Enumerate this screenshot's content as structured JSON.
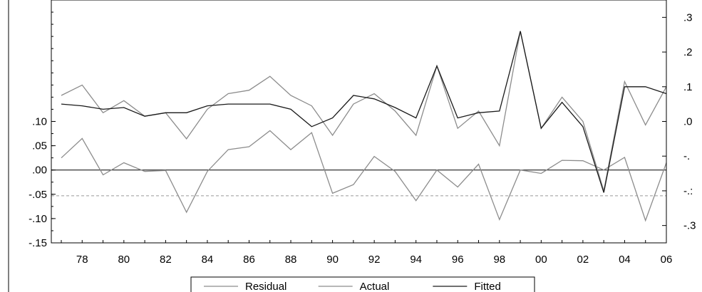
{
  "chart_data": {
    "type": "line",
    "title": "",
    "xlabel": "",
    "x": [
      1977,
      1978,
      1979,
      1980,
      1981,
      1982,
      1983,
      1984,
      1985,
      1986,
      1987,
      1988,
      1989,
      1990,
      1991,
      1992,
      1993,
      1994,
      1995,
      1996,
      1997,
      1998,
      1999,
      2000,
      2001,
      2002,
      2003,
      2004,
      2005,
      2006
    ],
    "x_tick_labels": [
      "78",
      "80",
      "82",
      "84",
      "86",
      "88",
      "90",
      "92",
      "94",
      "96",
      "98",
      "00",
      "02",
      "04",
      "06"
    ],
    "left_axis": {
      "ylim": [
        -0.15,
        0.35
      ],
      "tick_labels": [
        ".10",
        ".05",
        ".00",
        "-.05",
        "-.10",
        "-.15"
      ],
      "tick_values": [
        0.1,
        0.05,
        0.0,
        -0.05,
        -0.1,
        -0.15
      ],
      "reference_lines": [
        {
          "value": 0.0,
          "style": "solid",
          "color": "#000000"
        },
        {
          "value": -0.053,
          "style": "dashed",
          "color": "#999999"
        }
      ]
    },
    "right_axis": {
      "ylim": [
        -0.35,
        0.35
      ],
      "tick_labels": [
        ".3",
        ".2",
        ".1",
        ".0",
        "-.",
        "-.:",
        "-.3"
      ],
      "tick_values": [
        0.3,
        0.2,
        0.1,
        0.0,
        -0.1,
        -0.2,
        -0.3
      ]
    },
    "series": [
      {
        "name": "Residual",
        "axis": "left",
        "color": "#8c8c8c",
        "values": [
          0.025,
          0.065,
          -0.01,
          0.015,
          -0.003,
          -0.001,
          -0.087,
          -0.003,
          0.042,
          0.048,
          0.081,
          0.042,
          0.077,
          -0.048,
          -0.03,
          0.028,
          -0.003,
          -0.063,
          0.0,
          -0.035,
          0.012,
          -0.102,
          0.0,
          -0.007,
          0.02,
          0.019,
          0.0,
          0.026,
          -0.104,
          0.015
        ]
      },
      {
        "name": "Actual",
        "axis": "right",
        "color": "#8c8c8c",
        "values": [
          0.075,
          0.105,
          0.025,
          0.06,
          0.015,
          0.025,
          -0.05,
          0.035,
          0.08,
          0.09,
          0.13,
          0.075,
          0.045,
          -0.04,
          0.05,
          0.08,
          0.03,
          -0.04,
          0.16,
          -0.02,
          0.03,
          -0.07,
          0.26,
          -0.02,
          0.07,
          0.0,
          -0.2,
          0.115,
          -0.01,
          0.1
        ]
      },
      {
        "name": "Fitted",
        "axis": "right",
        "color": "#1a1a1a",
        "values": [
          0.05,
          0.045,
          0.035,
          0.04,
          0.015,
          0.025,
          0.025,
          0.045,
          0.05,
          0.05,
          0.05,
          0.035,
          -0.015,
          0.01,
          0.075,
          0.065,
          0.04,
          0.01,
          0.16,
          0.01,
          0.025,
          0.03,
          0.26,
          -0.02,
          0.055,
          -0.015,
          -0.205,
          0.1,
          0.1,
          0.08
        ]
      }
    ],
    "legend": {
      "position": "bottom-center",
      "entries": [
        "Residual",
        "Actual",
        "Fitted"
      ]
    },
    "grid": false
  }
}
